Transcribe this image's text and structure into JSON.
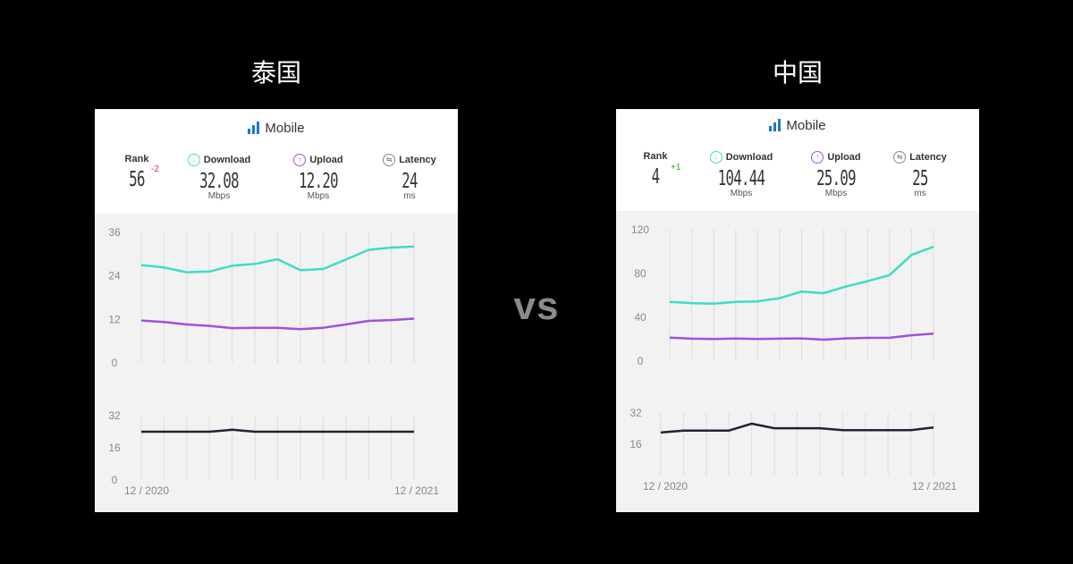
{
  "left": {
    "country": "泰国",
    "title": "Mobile",
    "rank_label": "Rank",
    "rank_value": "56",
    "rank_change": "-2",
    "download_label": "Download",
    "download_value": "32.08",
    "download_unit": "Mbps",
    "upload_label": "Upload",
    "upload_value": "12.20",
    "upload_unit": "Mbps",
    "latency_label": "Latency",
    "latency_value": "24",
    "latency_unit": "ms",
    "x_start": "12 / 2020",
    "x_end": "12 / 2021",
    "speed_ticks": [
      "0",
      "12",
      "24",
      "36"
    ],
    "latency_ticks": [
      "0",
      "16",
      "32"
    ]
  },
  "vs": "vs",
  "right": {
    "country": "中国",
    "title": "Mobile",
    "rank_label": "Rank",
    "rank_value": "4",
    "rank_change": "+1",
    "download_label": "Download",
    "download_value": "104.44",
    "download_unit": "Mbps",
    "upload_label": "Upload",
    "upload_value": "25.09",
    "upload_unit": "Mbps",
    "latency_label": "Latency",
    "latency_value": "25",
    "latency_unit": "ms",
    "x_start": "12 / 2020",
    "x_end": "12 / 2021",
    "speed_ticks": [
      "0",
      "40",
      "80",
      "120"
    ],
    "latency_ticks": [
      "16",
      "32"
    ]
  },
  "colors": {
    "download": "#3ddcc6",
    "upload": "#a24fe0",
    "latency": "#222235",
    "rank_down": "#d0323a",
    "rank_up": "#3e9a2a",
    "accent": "#1f78c8"
  },
  "chart_data": [
    {
      "type": "line",
      "x": [
        "12/2020",
        "01/2021",
        "02/2021",
        "03/2021",
        "04/2021",
        "05/2021",
        "06/2021",
        "07/2021",
        "08/2021",
        "09/2021",
        "10/2021",
        "11/2021",
        "12/2021"
      ],
      "series": [
        {
          "name": "Download",
          "values": [
            27,
            26.3,
            25,
            25.2,
            26.8,
            27.3,
            28.6,
            25.6,
            25.9,
            28.5,
            31.2,
            31.8,
            32.08
          ]
        },
        {
          "name": "Upload",
          "values": [
            11.7,
            11.3,
            10.6,
            10.2,
            9.6,
            9.7,
            9.7,
            9.3,
            9.7,
            10.6,
            11.6,
            11.8,
            12.2
          ]
        }
      ],
      "ylim": [
        0,
        36
      ],
      "yticks": [
        0,
        12,
        24,
        36
      ]
    },
    {
      "type": "line",
      "x": [
        "12/2020",
        "01/2021",
        "02/2021",
        "03/2021",
        "04/2021",
        "05/2021",
        "06/2021",
        "07/2021",
        "08/2021",
        "09/2021",
        "10/2021",
        "11/2021",
        "12/2021"
      ],
      "series": [
        {
          "name": "Latency",
          "values": [
            24,
            24,
            24,
            24,
            25,
            24,
            24,
            24,
            24,
            24,
            24,
            24,
            24
          ]
        }
      ],
      "ylim": [
        0,
        32
      ],
      "yticks": [
        0,
        16,
        32
      ]
    },
    {
      "type": "line",
      "x": [
        "12/2020",
        "01/2021",
        "02/2021",
        "03/2021",
        "04/2021",
        "05/2021",
        "06/2021",
        "07/2021",
        "08/2021",
        "09/2021",
        "10/2021",
        "11/2021",
        "12/2021"
      ],
      "series": [
        {
          "name": "Download",
          "values": [
            54,
            53,
            52.5,
            54,
            54.5,
            57.5,
            63.5,
            62,
            68,
            73,
            78.5,
            97,
            104.44
          ]
        },
        {
          "name": "Upload",
          "values": [
            21.5,
            20.5,
            20.2,
            20.6,
            20.2,
            20.5,
            20.7,
            19.6,
            20.7,
            21.2,
            21.3,
            23.6,
            25.09
          ]
        }
      ],
      "ylim": [
        0,
        120
      ],
      "yticks": [
        0,
        40,
        80,
        120
      ]
    },
    {
      "type": "line",
      "x": [
        "12/2020",
        "01/2021",
        "02/2021",
        "03/2021",
        "04/2021",
        "05/2021",
        "06/2021",
        "07/2021",
        "08/2021",
        "09/2021",
        "10/2021",
        "11/2021",
        "12/2021"
      ],
      "series": [
        {
          "name": "Latency",
          "values": [
            22,
            23,
            23,
            23,
            26.5,
            24.2,
            24.2,
            24.2,
            23.2,
            23.2,
            23.2,
            23.2,
            24.6
          ]
        }
      ],
      "ylim": [
        0,
        32
      ],
      "yticks": [
        16,
        32
      ]
    }
  ]
}
